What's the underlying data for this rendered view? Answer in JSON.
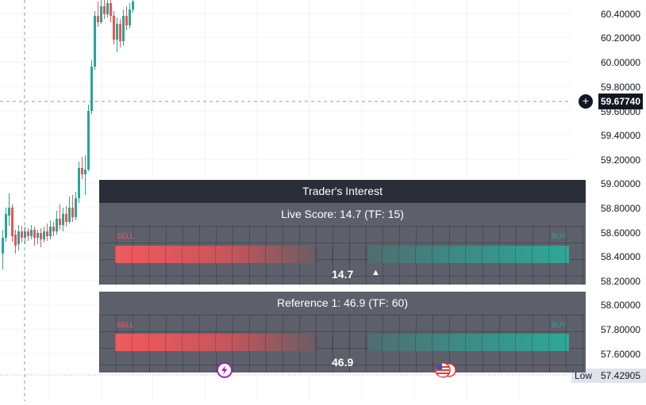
{
  "price_axis": {
    "ticks": [
      "60.40000",
      "60.20000",
      "60.00000",
      "59.80000",
      "59.60000",
      "59.40000",
      "59.20000",
      "59.00000",
      "58.80000",
      "58.60000",
      "58.40000",
      "58.20000",
      "58.00000",
      "57.80000",
      "57.60000"
    ],
    "crosshair_price": "59.67740",
    "crosshair_icon": "plus-circle-icon",
    "low_label": "Low",
    "low_value": "57.42905"
  },
  "panel": {
    "title": "Trader's Interest",
    "live": {
      "label": "Live Score: 14.7 (TF: 15)",
      "sell": "SELL",
      "buy": "BUY",
      "score": "14.7",
      "marker": "▲"
    },
    "reference": {
      "label": "Reference 1: 46.9 (TF: 60)",
      "sell": "SELL",
      "buy": "BUY",
      "score": "46.9"
    }
  },
  "events": {
    "icon1": "lightning-event-icon",
    "icon2": "us-flag-event-icon"
  },
  "colors": {
    "bull": "#26a69a",
    "bear": "#ef5350",
    "panel_head": "#2a2e39",
    "panel_body": "#5d606b"
  }
}
